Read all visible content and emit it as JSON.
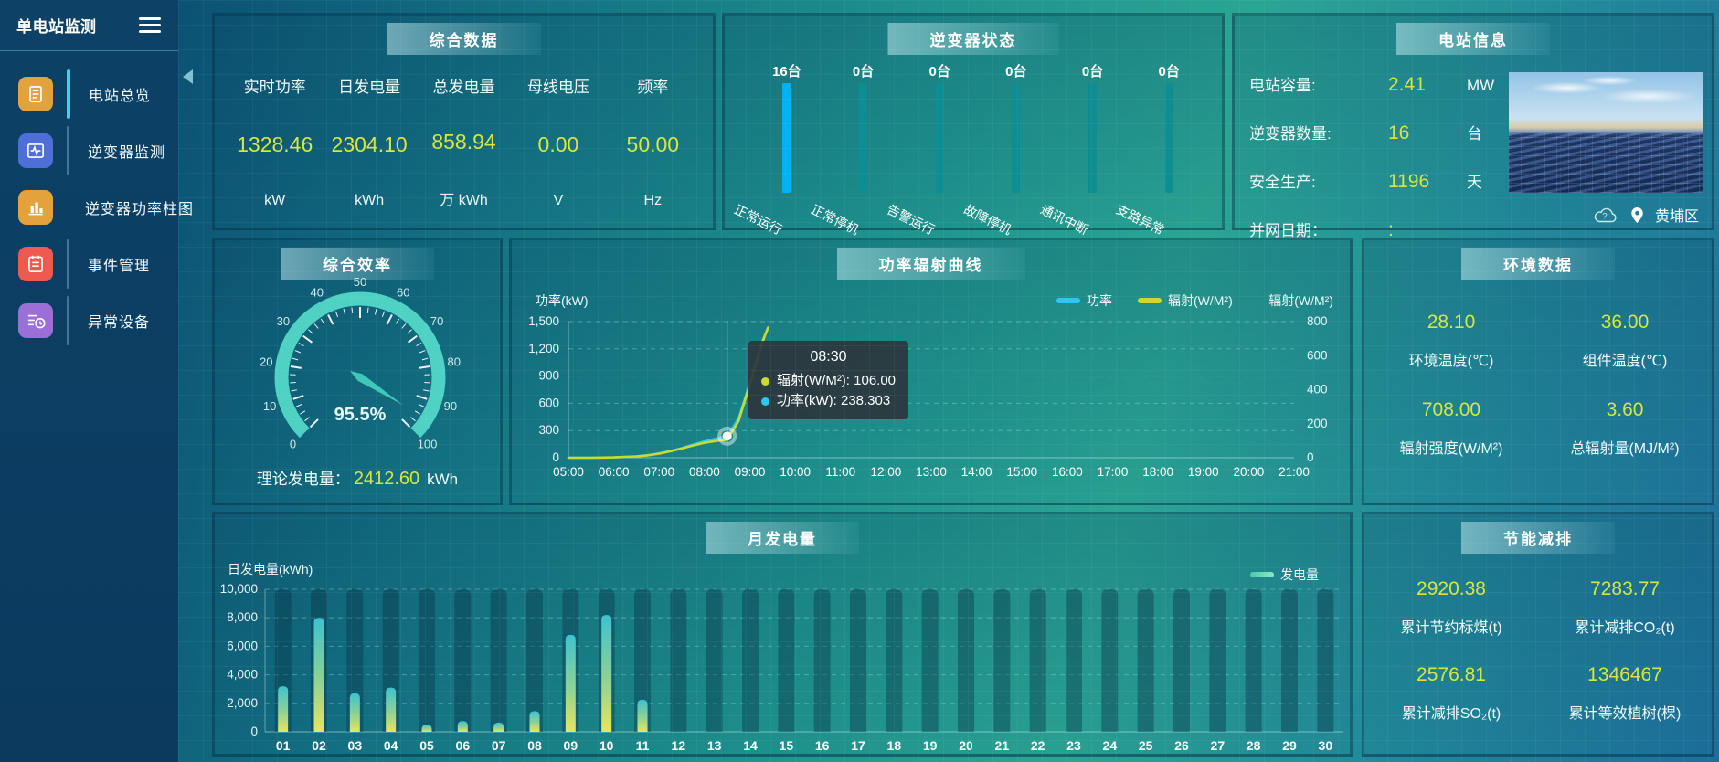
{
  "app": {
    "title": "单电站监测"
  },
  "sidebar": {
    "items": [
      {
        "label": "电站总览",
        "icon": "station-overview-icon",
        "color": "#e2a23c",
        "active": true
      },
      {
        "label": "逆变器监测",
        "icon": "inverter-monitor-icon",
        "color": "#4f6fd8",
        "active": false
      },
      {
        "label": "逆变器功率柱图",
        "icon": "inverter-power-chart-icon",
        "color": "#e2a23c",
        "active": false
      },
      {
        "label": "事件管理",
        "icon": "event-management-icon",
        "color": "#ef5a50",
        "active": false
      },
      {
        "label": "异常设备",
        "icon": "abnormal-device-icon",
        "color": "#9b6fd6",
        "active": false
      }
    ]
  },
  "panels": {
    "summary": {
      "title": "综合数据",
      "metrics": [
        {
          "label": "实时功率",
          "value": "1328.46",
          "unit": "kW"
        },
        {
          "label": "日发电量",
          "value": "2304.10",
          "unit": "kWh"
        },
        {
          "label": "总发电量",
          "value": "858.94",
          "unit": "万 kWh"
        },
        {
          "label": "母线电压",
          "value": "0.00",
          "unit": "V"
        },
        {
          "label": "频率",
          "value": "50.00",
          "unit": "Hz"
        }
      ]
    },
    "inverter_status": {
      "title": "逆变器状态",
      "bars": [
        {
          "count": "16台",
          "label": "正常运行",
          "color": "#00b2f0"
        },
        {
          "count": "0台",
          "label": "正常停机",
          "color": "#0e8d92"
        },
        {
          "count": "0台",
          "label": "告警运行",
          "color": "#0e8d92"
        },
        {
          "count": "0台",
          "label": "故障停机",
          "color": "#0e8d92"
        },
        {
          "count": "0台",
          "label": "通讯中断",
          "color": "#0e8d92"
        },
        {
          "count": "0台",
          "label": "支路异常",
          "color": "#0e8d92"
        }
      ]
    },
    "station_info": {
      "title": "电站信息",
      "rows": [
        {
          "label": "电站容量:",
          "value": "2.41",
          "unit": "MW"
        },
        {
          "label": "逆变器数量:",
          "value": "16",
          "unit": "台"
        },
        {
          "label": "安全生产:",
          "value": "1196",
          "unit": "天"
        },
        {
          "label": "并网日期：",
          "value": ":",
          "unit": ""
        }
      ],
      "location": "黄埔区"
    },
    "efficiency": {
      "title": "综合效率",
      "theoretical_label": "理论发电量：",
      "theoretical_value": "2412.60",
      "theoretical_unit": "kWh"
    },
    "power_radiation": {
      "title": "功率辐射曲线"
    },
    "environment": {
      "title": "环境数据",
      "metrics": [
        {
          "value": "28.10",
          "label": "环境温度(℃)"
        },
        {
          "value": "36.00",
          "label": "组件温度(℃)"
        },
        {
          "value": "708.00",
          "label": "辐射强度(W/M²)"
        },
        {
          "value": "3.60",
          "label": "总辐射量(MJ/M²)"
        }
      ]
    },
    "monthly": {
      "title": "月发电量"
    },
    "savings": {
      "title": "节能减排",
      "metrics": [
        {
          "value": "2920.38",
          "label": "累计节约标煤(t)"
        },
        {
          "value": "7283.77",
          "label": "累计减排CO₂(t)"
        },
        {
          "value": "2576.81",
          "label": "累计减排SO₂(t)"
        },
        {
          "value": "1346467",
          "label": "累计等效植树(棵)"
        }
      ]
    }
  },
  "chart_data": [
    {
      "type": "gauge",
      "title": "综合效率",
      "min": 0,
      "max": 100,
      "value": 95.5,
      "value_label": "95.5%",
      "major_ticks": [
        0,
        10,
        20,
        30,
        40,
        50,
        60,
        70,
        80,
        90,
        100
      ],
      "arc_color": "#4fd2c4",
      "needle_color": "#3fc8b8",
      "tick_label_color": "#cfeaea"
    },
    {
      "type": "line",
      "title": "功率辐射曲线",
      "x_ticks": [
        "05:00",
        "06:00",
        "07:00",
        "08:00",
        "09:00",
        "10:00",
        "11:00",
        "12:00",
        "13:00",
        "14:00",
        "15:00",
        "16:00",
        "17:00",
        "18:00",
        "19:00",
        "20:00",
        "21:00"
      ],
      "x_range_hours": [
        5,
        21
      ],
      "left_axis": {
        "label": "功率(kW)",
        "ticks": [
          0,
          300,
          600,
          900,
          1200,
          1500
        ],
        "max": 1500
      },
      "right_axis": {
        "label": "辐射(W/M²)",
        "ticks": [
          0,
          200,
          400,
          600,
          800
        ],
        "max": 800
      },
      "legend": [
        "功率",
        "辐射(W/M²)"
      ],
      "series": [
        {
          "name": "功率",
          "color": "#2ec6f2",
          "axis": "left",
          "points": [
            [
              5,
              0
            ],
            [
              5.5,
              0
            ],
            [
              6,
              3
            ],
            [
              6.5,
              15
            ],
            [
              6.75,
              28
            ],
            [
              7,
              48
            ],
            [
              7.25,
              75
            ],
            [
              7.5,
              105
            ],
            [
              7.75,
              145
            ],
            [
              8,
              180
            ],
            [
              8.25,
              208
            ],
            [
              8.5,
              238.303
            ],
            [
              8.75,
              430
            ],
            [
              9,
              820
            ],
            [
              9.25,
              1250
            ],
            [
              9.4,
              1430
            ]
          ]
        },
        {
          "name": "辐射(W/M²)",
          "color": "#ccd92e",
          "axis": "right",
          "points": [
            [
              5,
              0
            ],
            [
              5.5,
              0
            ],
            [
              6,
              2
            ],
            [
              6.5,
              8
            ],
            [
              6.75,
              14
            ],
            [
              7,
              24
            ],
            [
              7.25,
              38
            ],
            [
              7.5,
              55
            ],
            [
              7.75,
              72
            ],
            [
              8,
              88
            ],
            [
              8.25,
              98
            ],
            [
              8.5,
              106
            ],
            [
              8.75,
              215
            ],
            [
              9,
              430
            ],
            [
              9.25,
              660
            ],
            [
              9.4,
              765
            ]
          ]
        }
      ],
      "hover": {
        "x": 8.5,
        "value": 238.303
      },
      "tooltip": {
        "time": "08:30",
        "rows": [
          {
            "name": "辐射(W/M²)",
            "value": "106.00",
            "color": "#ccd92e"
          },
          {
            "name": "功率(kW)",
            "value": "238.303",
            "color": "#2ec6f2"
          }
        ]
      }
    },
    {
      "type": "bar",
      "title": "月发电量",
      "ylabel": "日发电量(kWh)",
      "legend_label": "发电量",
      "legend_color": "#4cc9a9",
      "categories": [
        "01",
        "02",
        "03",
        "04",
        "05",
        "06",
        "07",
        "08",
        "09",
        "10",
        "11",
        "12",
        "13",
        "14",
        "15",
        "16",
        "17",
        "18",
        "19",
        "20",
        "21",
        "22",
        "23",
        "24",
        "25",
        "26",
        "27",
        "28",
        "29",
        "30"
      ],
      "values": [
        3200,
        8000,
        2700,
        3100,
        500,
        750,
        650,
        1450,
        6800,
        8200,
        2250,
        0,
        0,
        0,
        0,
        0,
        0,
        0,
        0,
        0,
        0,
        0,
        0,
        0,
        0,
        0,
        0,
        0,
        0,
        0
      ],
      "ylim": [
        0,
        10000
      ],
      "yticks": [
        0,
        2000,
        4000,
        6000,
        8000,
        10000
      ],
      "bar_gradient": [
        "#3cc2cf",
        "#8ed293",
        "#e9e45e"
      ]
    }
  ]
}
